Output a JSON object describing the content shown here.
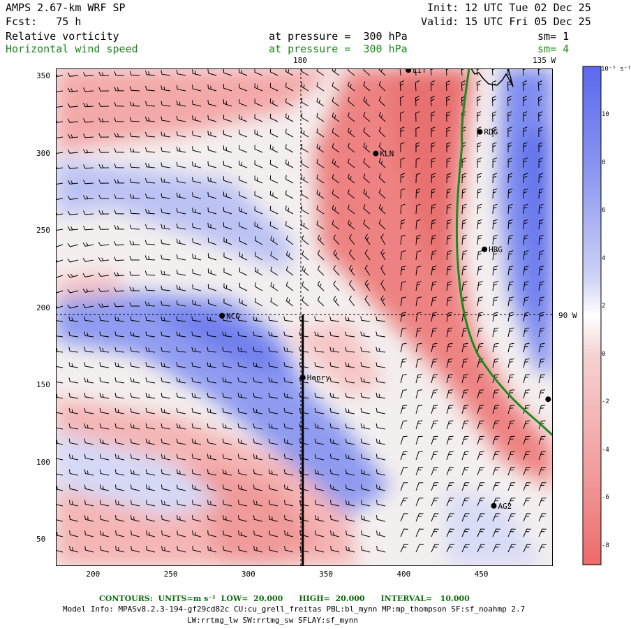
{
  "header": {
    "model": "AMPS 2.67-km WRF SP",
    "forecast": "Fcst:   75 h",
    "init": "Init: 12 UTC Tue 02 Dec 25",
    "valid": "Valid: 15 UTC Fri 05 Dec 25",
    "field1": {
      "name": "Relative vorticity",
      "level": "at pressure =  300 hPa",
      "sm": "sm= 1"
    },
    "field2": {
      "name": "Horizontal wind speed",
      "level": "at pressure =  300 hPa",
      "sm": "sm= 4"
    }
  },
  "map": {
    "meridian_labels": [
      "180",
      "135 W"
    ],
    "parallel_label": "90 W",
    "x_ticks": [
      "200",
      "250",
      "300",
      "350",
      "400",
      "450"
    ],
    "y_ticks": [
      "350",
      "300",
      "250",
      "200",
      "150",
      "100",
      "50"
    ],
    "x_range": [
      176,
      496
    ],
    "y_range": [
      33,
      355
    ],
    "stations": [
      {
        "name": "LIT",
        "x": 403,
        "y": 354
      },
      {
        "name": "RDG",
        "x": 449,
        "y": 314
      },
      {
        "name": "KLN",
        "x": 382,
        "y": 300
      },
      {
        "name": "HRG",
        "x": 452,
        "y": 238
      },
      {
        "name": "NCO",
        "x": 283,
        "y": 195
      },
      {
        "name": "Henry",
        "x": 335,
        "y": 155
      },
      {
        "name": "AG2",
        "x": 458,
        "y": 72
      },
      {
        "name": "",
        "x": 493,
        "y": 141
      }
    ],
    "contour_level": 20,
    "cross_section_x": 335
  },
  "colorbar": {
    "unit": "10⁻⁵ s⁻¹",
    "labels": [
      "10",
      "8",
      "6",
      "4",
      "2",
      "0",
      "-2",
      "-4",
      "-6",
      "-8"
    ],
    "positive_color": "#4a5bf0",
    "negative_color": "#f06a6a"
  },
  "footer": {
    "contours": "CONTOURS:  UNITS=m s⁻¹  LOW=  20.000      HIGH=  20.000      INTERVAL=   10.000",
    "model_info": "Model Info: MPASv8.2.3-194-gf29cd82c CU:cu_grell_freitas PBL:bl_mynn MP:mp_thompson SF:sf_noahmp 2.7",
    "model_info2": "LW:rrtmg_lw SW:rrtmg_sw SFLAY:sf_mynn"
  }
}
